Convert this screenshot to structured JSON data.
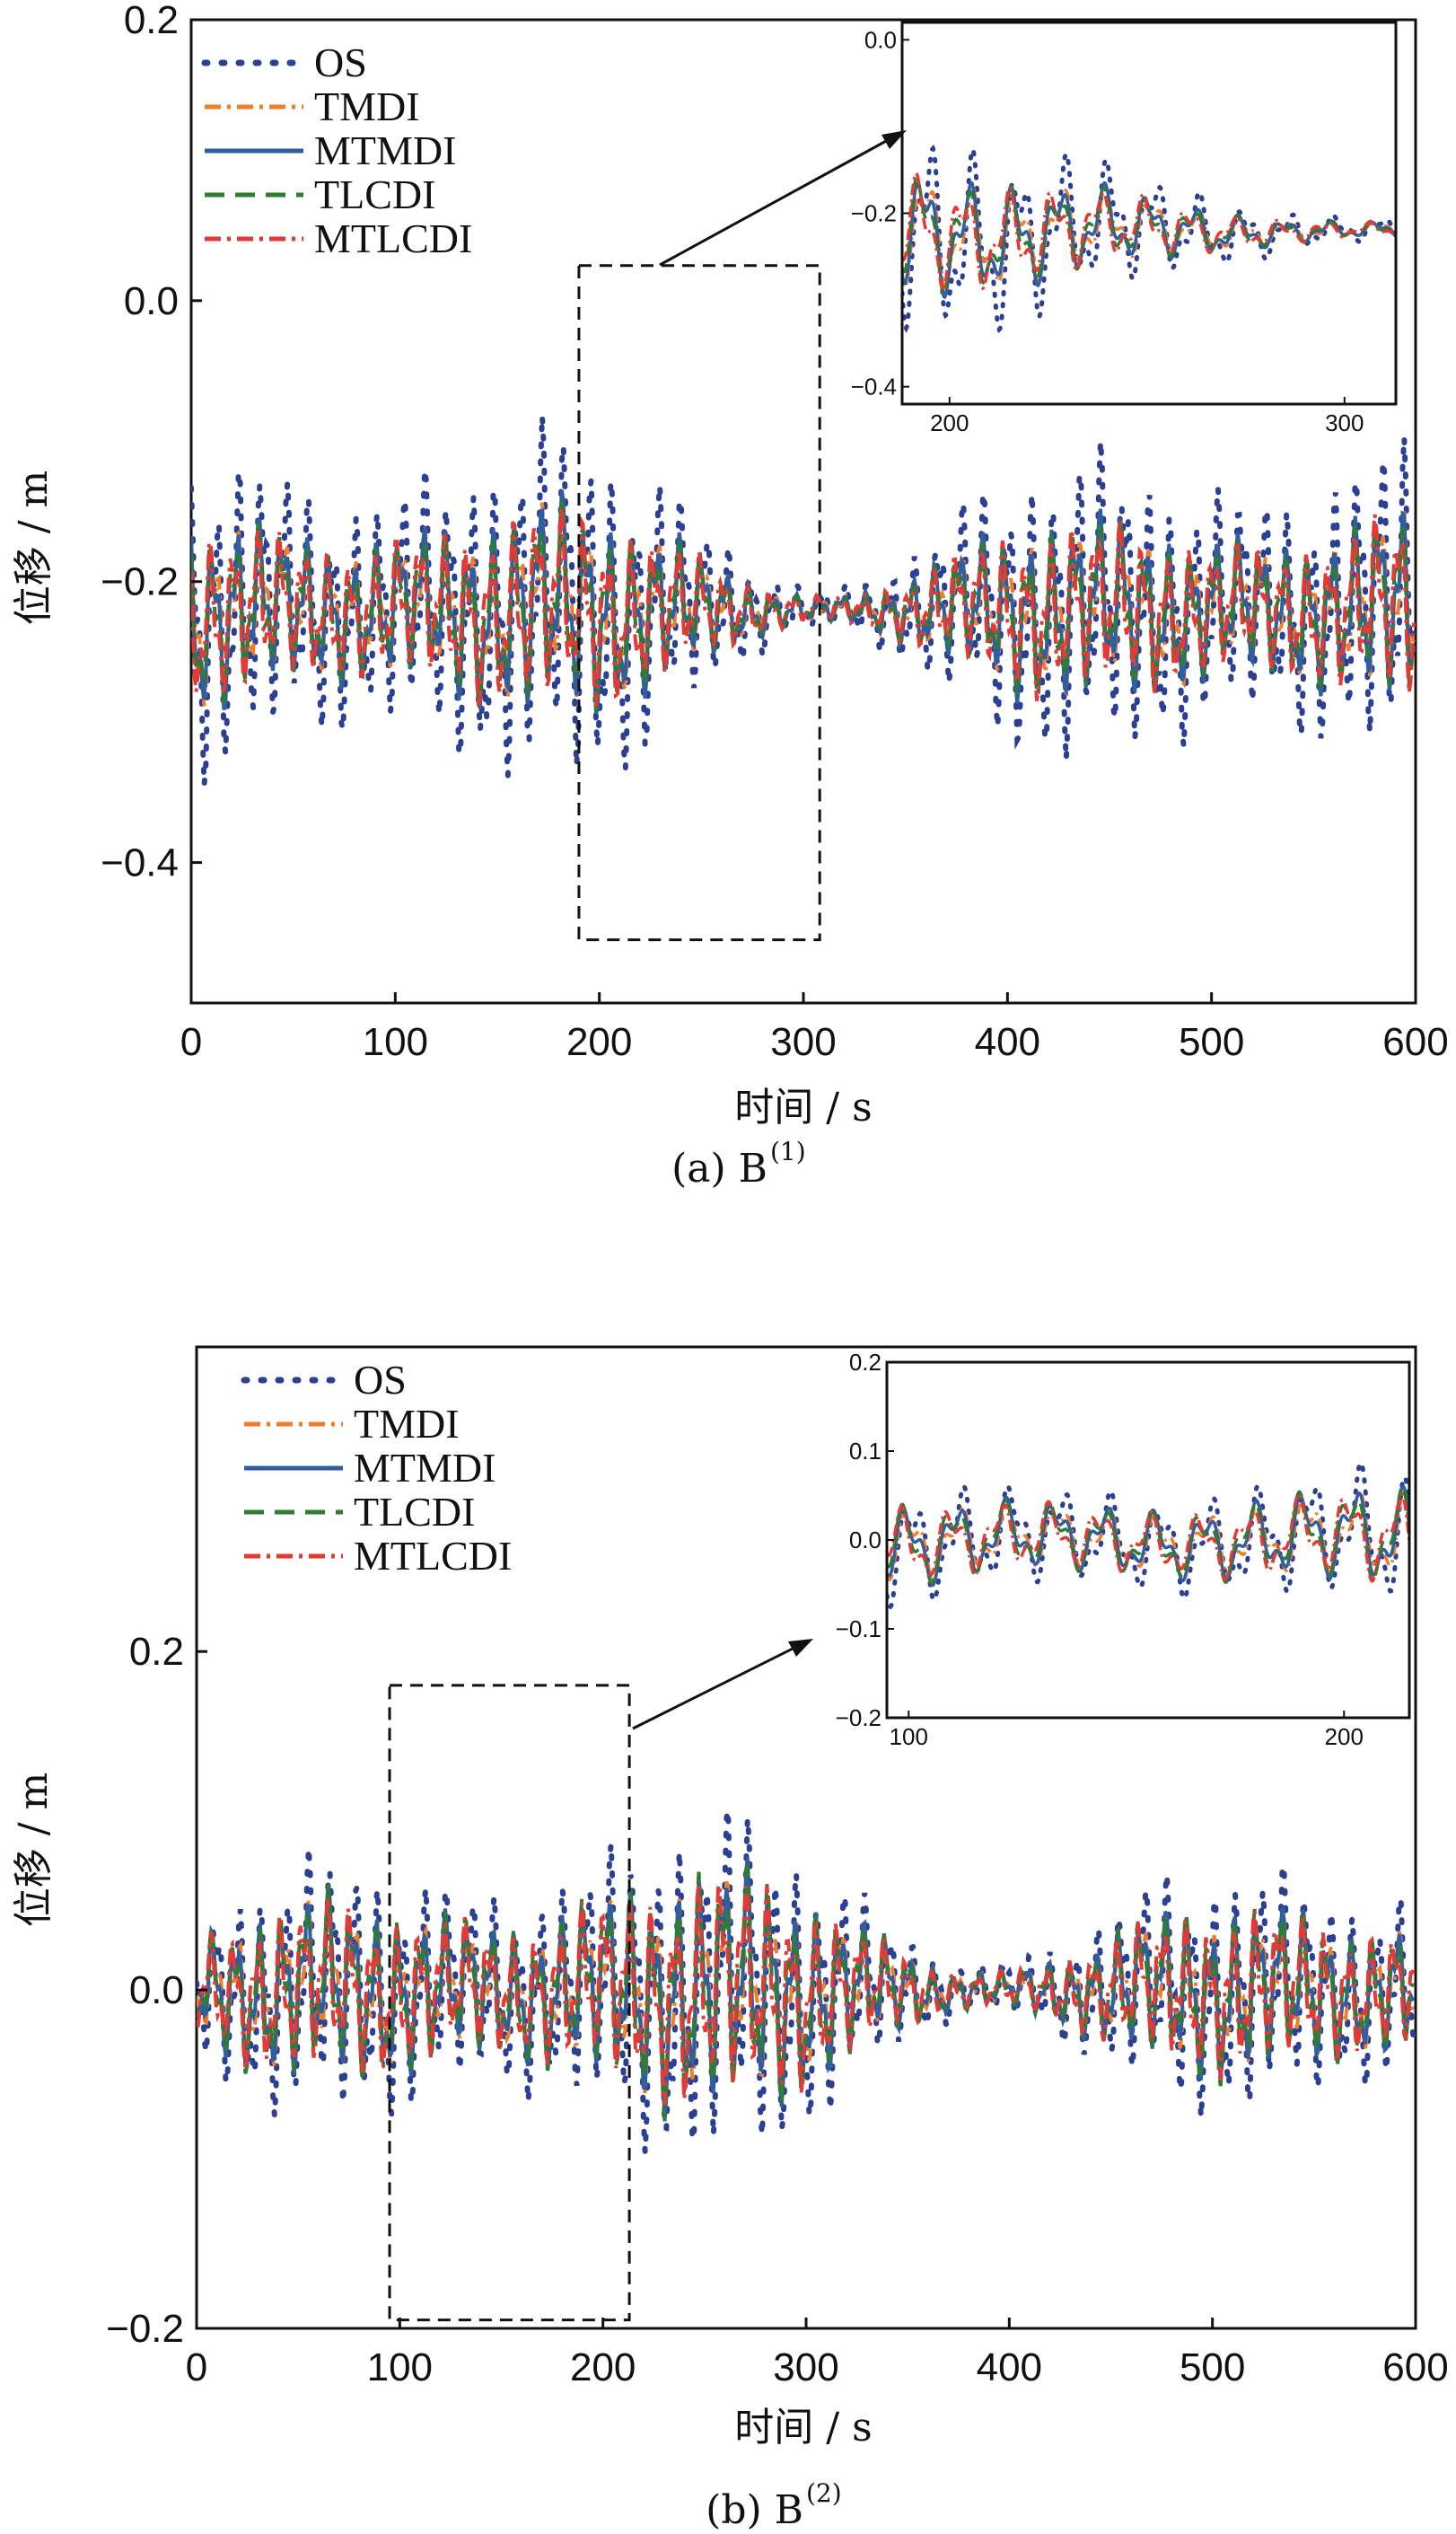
{
  "chart_data": [
    {
      "type": "line",
      "panel": "a",
      "caption": "(a) B",
      "caption_sup": "(1)",
      "xlabel": "时间 / s",
      "ylabel": "位移 / m",
      "xlim": [
        0,
        600
      ],
      "ylim": [
        -0.5,
        0.2
      ],
      "xticks": [
        0,
        100,
        200,
        300,
        400,
        500,
        600
      ],
      "yticks": [
        -0.4,
        -0.2,
        0.0,
        0.2
      ],
      "yticklabels": [
        "−0.4",
        "−0.2",
        "0.0",
        "0.2"
      ],
      "baseline": -0.22,
      "legend": {
        "placement": "top-left"
      },
      "series": [
        {
          "name": "OS",
          "color": "#2b3f93",
          "style": "dotted",
          "amp": 0.12
        },
        {
          "name": "TMDI",
          "color": "#f07d2a",
          "style": "dashdot",
          "amp": 0.07
        },
        {
          "name": "MTMDI",
          "color": "#2f5f9e",
          "style": "solid",
          "amp": 0.075
        },
        {
          "name": "TLCDI",
          "color": "#2e7d32",
          "style": "dashed",
          "amp": 0.07
        },
        {
          "name": "MTLCDI",
          "color": "#e53935",
          "style": "dashdot",
          "amp": 0.068
        }
      ],
      "zoom_box": {
        "x": [
          190,
          308
        ],
        "y": [
          -0.455,
          0.025
        ]
      },
      "inset": {
        "xlim": [
          188,
          313
        ],
        "ylim": [
          -0.42,
          0.02
        ],
        "xticks": [
          200,
          300
        ],
        "yticks": [
          -0.4,
          -0.2,
          0.0
        ],
        "yticklabels": [
          "−0.4",
          "−0.2",
          "0.0"
        ]
      }
    },
    {
      "type": "line",
      "panel": "b",
      "caption": "(b) B",
      "caption_sup": "(2)",
      "xlabel": "时间 / s",
      "ylabel": "位移 / m",
      "xlim": [
        0,
        600
      ],
      "ylim": [
        -0.2,
        0.38
      ],
      "xticks": [
        0,
        100,
        200,
        300,
        400,
        500,
        600
      ],
      "yticks": [
        -0.2,
        0.0,
        0.2
      ],
      "yticklabels": [
        "−0.2",
        "0.0",
        "0.2"
      ],
      "baseline": 0.0,
      "legend": {
        "placement": "top-left"
      },
      "series": [
        {
          "name": "OS",
          "color": "#2b3f93",
          "style": "dotted",
          "amp": 0.09
        },
        {
          "name": "TMDI",
          "color": "#f07d2a",
          "style": "dashdot",
          "amp": 0.06
        },
        {
          "name": "MTMDI",
          "color": "#2f5f9e",
          "style": "solid",
          "amp": 0.065
        },
        {
          "name": "TLCDI",
          "color": "#2e7d32",
          "style": "dashed",
          "amp": 0.065
        },
        {
          "name": "MTLCDI",
          "color": "#e53935",
          "style": "dashdot",
          "amp": 0.06
        }
      ],
      "zoom_box": {
        "x": [
          95,
          213
        ],
        "y": [
          -0.195,
          0.18
        ]
      },
      "inset": {
        "xlim": [
          95,
          215
        ],
        "ylim": [
          -0.2,
          0.2
        ],
        "xticks": [
          100,
          200
        ],
        "yticks": [
          -0.2,
          -0.1,
          0.0,
          0.1,
          0.2
        ],
        "yticklabels": [
          "−0.2",
          "−0.1",
          "0.0",
          "0.1",
          "0.2"
        ]
      }
    }
  ]
}
